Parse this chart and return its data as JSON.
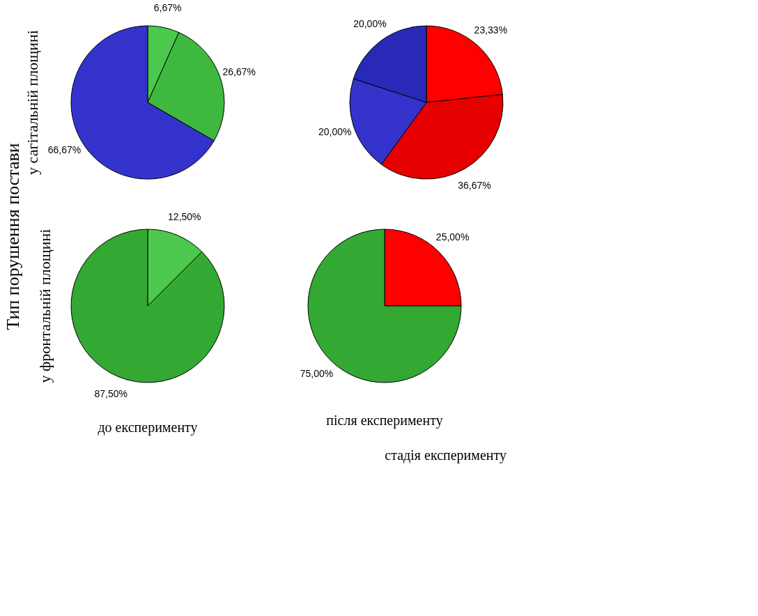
{
  "chart_data": [
    {
      "type": "pie",
      "ylabel": "у сагітальній площині",
      "categories": [
        null,
        null,
        null
      ],
      "values": [
        6.67,
        26.67,
        66.67
      ],
      "value_labels": [
        "6,67%",
        "26,67%",
        "66,67%"
      ],
      "colors": [
        "#4cc94c",
        "#3fb83f",
        "#3333cc"
      ],
      "annotations": [
        "Тип порушення постави"
      ]
    },
    {
      "type": "pie",
      "categories": [
        null,
        null,
        null,
        null
      ],
      "values": [
        23.33,
        36.67,
        20.0,
        20.0
      ],
      "value_labels": [
        "23,33%",
        "36,67%",
        "20,00%",
        "20,00%"
      ],
      "colors": [
        "#ff0000",
        "#e60000",
        "#3333cc",
        "#2929b8"
      ]
    },
    {
      "type": "pie",
      "ylabel": "у фронтальній площині",
      "xlabel": "до експерименту",
      "categories": [
        null,
        null
      ],
      "values": [
        12.5,
        87.5
      ],
      "value_labels": [
        "12,50%",
        "87,50%"
      ],
      "colors": [
        "#4cc94c",
        "#33a833"
      ]
    },
    {
      "type": "pie",
      "xlabel": "після експерименту",
      "categories": [
        null,
        null
      ],
      "values": [
        25.0,
        75.0
      ],
      "value_labels": [
        "25,00%",
        "75,00%"
      ],
      "colors": [
        "#ff0000",
        "#33a833"
      ],
      "annotations": [
        "стадія експерименту"
      ]
    }
  ]
}
